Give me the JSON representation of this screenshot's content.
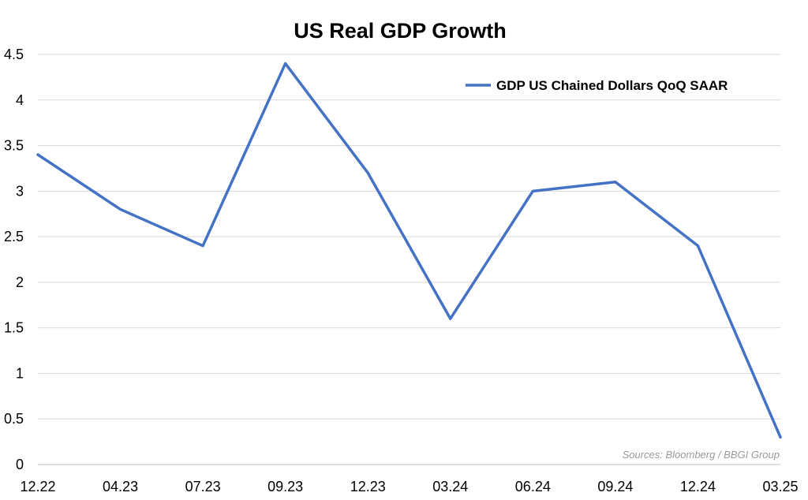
{
  "chart_data": {
    "type": "line",
    "title": "US Real GDP Growth",
    "xlabel": "",
    "ylabel": "",
    "categories": [
      "12.22",
      "04.23",
      "07.23",
      "09.23",
      "12.23",
      "03.24",
      "06.24",
      "09.24",
      "12.24",
      "03.25"
    ],
    "series": [
      {
        "name": "GDP US Chained Dollars QoQ SAAR",
        "values": [
          3.4,
          2.8,
          2.4,
          4.4,
          3.2,
          1.6,
          3.0,
          3.1,
          2.4,
          0.3
        ],
        "color": "#4472C4"
      }
    ],
    "ylim": [
      0,
      4.5
    ],
    "yticks": [
      "0",
      "0.5",
      "1",
      "1.5",
      "2",
      "2.5",
      "3",
      "3.5",
      "4",
      "4.5"
    ],
    "grid": true,
    "legend_position": "top-right",
    "source_note": "Sources: Bloomberg / BBGI Group"
  }
}
